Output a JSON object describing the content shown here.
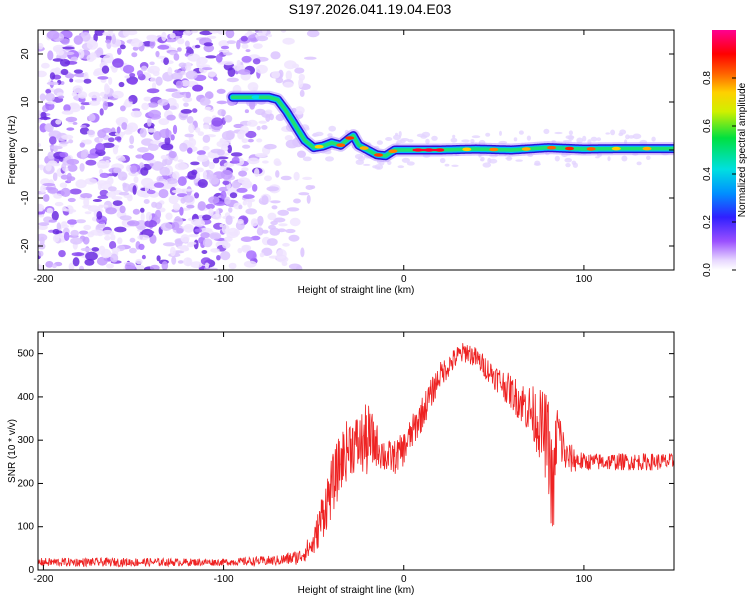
{
  "title": "S197.2026.041.19.04.E03",
  "chart_data": [
    {
      "type": "heatmap",
      "xlabel": "Height of straight line (km)",
      "ylabel": "Frequency (Hz)",
      "xlim": [
        -203,
        150
      ],
      "ylim": [
        -25,
        25
      ],
      "xticks": [
        -200,
        -100,
        0,
        100
      ],
      "xtick_labels": [
        "-200",
        "-100",
        "0",
        "100"
      ],
      "yticks": [
        -20,
        -10,
        0,
        10,
        20
      ],
      "ytick_labels": [
        "-20",
        "-10",
        "0",
        "10",
        "20"
      ],
      "noise_region_x": [
        -203,
        -58
      ],
      "signal_trace": {
        "x": [
          -95,
          -85,
          -75,
          -70,
          -65,
          -60,
          -55,
          -50,
          -45,
          -40,
          -35,
          -30,
          -28,
          -25,
          -20,
          -15,
          -10,
          -5,
          0,
          10,
          20,
          40,
          60,
          80,
          100,
          120,
          150
        ],
        "y": [
          11,
          11,
          11,
          10.5,
          8,
          5,
          2,
          0.5,
          0.8,
          1.5,
          1,
          2.5,
          3,
          1,
          0,
          -1,
          -1.2,
          0,
          0,
          0,
          0,
          0.2,
          0,
          0.5,
          0.2,
          0.3,
          0.3
        ]
      },
      "colorbar": {
        "label": "Normalized spectral amplitude",
        "range": [
          0,
          1
        ],
        "ticks": [
          0.0,
          0.2,
          0.4,
          0.6,
          0.8
        ],
        "tick_labels": [
          "0.0",
          "0.2",
          "0.4",
          "0.6",
          "0.8"
        ]
      }
    },
    {
      "type": "line",
      "color": "#ee2222",
      "xlabel": "Height of straight line (km)",
      "ylabel": "SNR (10 * v/v)",
      "xlim": [
        -203,
        150
      ],
      "ylim": [
        0,
        550
      ],
      "xticks": [
        -200,
        -100,
        0,
        100
      ],
      "xtick_labels": [
        "-200",
        "-100",
        "0",
        "100"
      ],
      "yticks": [
        0,
        100,
        200,
        300,
        400,
        500
      ],
      "ytick_labels": [
        "0",
        "100",
        "200",
        "300",
        "400",
        "500"
      ],
      "series": [
        {
          "name": "SNR",
          "x": [
            -203,
            -150,
            -100,
            -70,
            -58,
            -50,
            -45,
            -40,
            -35,
            -30,
            -25,
            -20,
            -15,
            -10,
            -5,
            0,
            10,
            20,
            30,
            35,
            40,
            50,
            60,
            70,
            75,
            80,
            83,
            85,
            90,
            100,
            120,
            150
          ],
          "y": [
            18,
            18,
            18,
            22,
            30,
            60,
            130,
            190,
            250,
            290,
            290,
            300,
            290,
            260,
            260,
            280,
            360,
            450,
            495,
            505,
            490,
            450,
            410,
            370,
            340,
            300,
            160,
            330,
            260,
            250,
            250,
            250
          ],
          "noise": [
            10,
            10,
            8,
            12,
            18,
            30,
            60,
            70,
            70,
            70,
            70,
            90,
            50,
            40,
            40,
            40,
            40,
            30,
            25,
            25,
            25,
            30,
            40,
            60,
            80,
            110,
            120,
            80,
            40,
            20,
            20,
            20
          ]
        }
      ]
    }
  ]
}
